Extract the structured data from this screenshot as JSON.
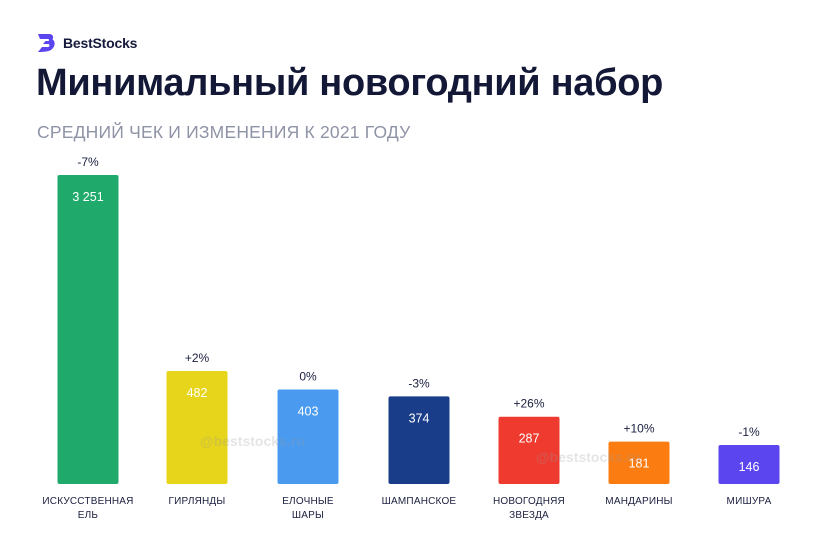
{
  "brand": {
    "name": "BestStocks",
    "logo_icon": "beststocks-logo-icon"
  },
  "title": "Минимальный новогодний набор",
  "subtitle": "СРЕДНИЙ ЧЕК И ИЗМЕНЕНИЯ К 2021 ГОДУ",
  "watermark": "@beststocks.ru",
  "chart_data": {
    "type": "bar",
    "categories": [
      [
        "ИСКУССТВЕННАЯ",
        "ЕЛЬ"
      ],
      [
        "ГИРЛЯНДЫ"
      ],
      [
        "ЕЛОЧНЫЕ",
        "ШАРЫ"
      ],
      [
        "ШАМПАНСКОЕ"
      ],
      [
        "НОВОГОДНЯЯ",
        "ЗВЕЗДА"
      ],
      [
        "МАНДАРИНЫ"
      ],
      [
        "МИШУРА"
      ]
    ],
    "values": [
      3251,
      482,
      403,
      374,
      287,
      181,
      146
    ],
    "value_labels": [
      "3 251",
      "482",
      "403",
      "374",
      "287",
      "181",
      "146"
    ],
    "changes": [
      "-7%",
      "+2%",
      "0%",
      "-3%",
      "+26%",
      "+10%",
      "-1%"
    ],
    "colors": [
      "#1faa6b",
      "#e6d51a",
      "#4a9bef",
      "#1a3d8a",
      "#ef3b2f",
      "#fb7d12",
      "#5b45ef"
    ],
    "grid": false
  }
}
